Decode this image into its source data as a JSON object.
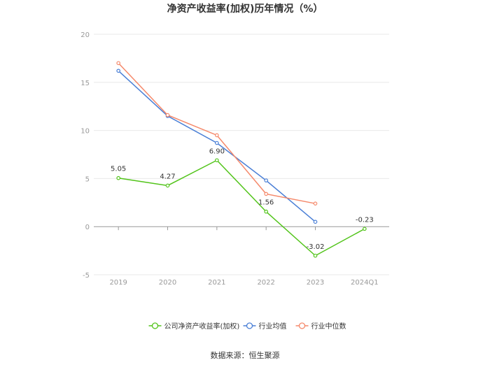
{
  "chart_data": {
    "type": "line",
    "title": "净资产收益率(加权)历年情况（%）",
    "categories": [
      "2019",
      "2020",
      "2021",
      "2022",
      "2023",
      "2024Q1"
    ],
    "ylim": [
      -5,
      20
    ],
    "yticks": [
      -5,
      0,
      5,
      10,
      15,
      20
    ],
    "grid": true,
    "legend_position": "bottom",
    "series": [
      {
        "name": "公司净资产收益率(加权)",
        "color": "#52c41a",
        "values": [
          5.05,
          4.27,
          6.9,
          1.56,
          -3.02,
          -0.23
        ],
        "labels": [
          "5.05",
          "4.27",
          "6.90",
          "1.56",
          "-3.02",
          "-0.23"
        ]
      },
      {
        "name": "行业均值",
        "color": "#4a7fd6",
        "values": [
          16.2,
          11.5,
          8.7,
          4.8,
          0.5,
          null
        ]
      },
      {
        "name": "行业中位数",
        "color": "#f5896b",
        "values": [
          17.0,
          11.6,
          9.5,
          3.4,
          2.4,
          null
        ]
      }
    ]
  },
  "source": "数据来源：恒生聚源"
}
